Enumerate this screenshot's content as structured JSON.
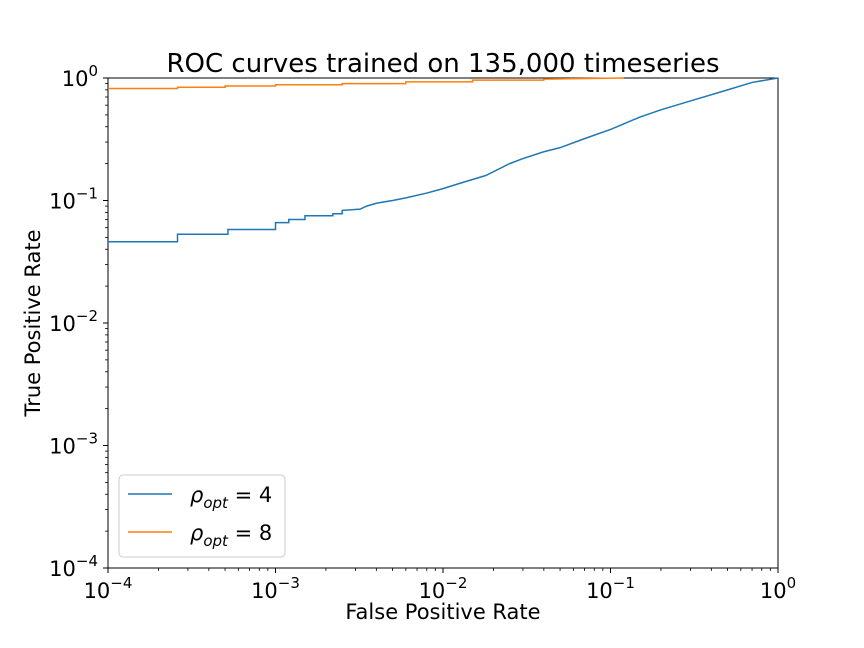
{
  "chart_data": {
    "type": "line",
    "title": "ROC curves trained on 135,000 timeseries",
    "xlabel": "False Positive Rate",
    "ylabel": "True Positive Rate",
    "xscale": "log",
    "yscale": "log",
    "xlim": [
      0.0001,
      1
    ],
    "ylim": [
      0.0001,
      1
    ],
    "x_ticks": [
      {
        "value": 0.0001,
        "base": "10",
        "exp": "−4"
      },
      {
        "value": 0.001,
        "base": "10",
        "exp": "−3"
      },
      {
        "value": 0.01,
        "base": "10",
        "exp": "−2"
      },
      {
        "value": 0.1,
        "base": "10",
        "exp": "−1"
      },
      {
        "value": 1,
        "base": "10",
        "exp": "0"
      }
    ],
    "y_ticks": [
      {
        "value": 0.0001,
        "base": "10",
        "exp": "−4"
      },
      {
        "value": 0.001,
        "base": "10",
        "exp": "−3"
      },
      {
        "value": 0.01,
        "base": "10",
        "exp": "−2"
      },
      {
        "value": 0.1,
        "base": "10",
        "exp": "−1"
      },
      {
        "value": 1,
        "base": "10",
        "exp": "0"
      }
    ],
    "grid": false,
    "legend_position": "lower-left",
    "series": [
      {
        "name": "ρ_opt = 4",
        "legend": {
          "symbol": "ρ",
          "sub": "opt",
          "suffix": " = 4"
        },
        "color": "#1f77b4",
        "points": [
          [
            0.0001,
            0.046
          ],
          [
            0.00026,
            0.046
          ],
          [
            0.00026,
            0.053
          ],
          [
            0.00052,
            0.053
          ],
          [
            0.00052,
            0.058
          ],
          [
            0.001,
            0.058
          ],
          [
            0.001,
            0.066
          ],
          [
            0.0012,
            0.066
          ],
          [
            0.0012,
            0.07
          ],
          [
            0.0015,
            0.07
          ],
          [
            0.0015,
            0.075
          ],
          [
            0.0022,
            0.075
          ],
          [
            0.0022,
            0.078
          ],
          [
            0.0025,
            0.078
          ],
          [
            0.0025,
            0.083
          ],
          [
            0.0032,
            0.085
          ],
          [
            0.0035,
            0.09
          ],
          [
            0.004,
            0.095
          ],
          [
            0.005,
            0.1
          ],
          [
            0.006,
            0.105
          ],
          [
            0.008,
            0.115
          ],
          [
            0.01,
            0.125
          ],
          [
            0.013,
            0.14
          ],
          [
            0.018,
            0.16
          ],
          [
            0.025,
            0.2
          ],
          [
            0.03,
            0.22
          ],
          [
            0.04,
            0.25
          ],
          [
            0.05,
            0.27
          ],
          [
            0.07,
            0.32
          ],
          [
            0.1,
            0.38
          ],
          [
            0.15,
            0.48
          ],
          [
            0.2,
            0.55
          ],
          [
            0.3,
            0.65
          ],
          [
            0.5,
            0.8
          ],
          [
            0.7,
            0.92
          ],
          [
            1,
            1
          ]
        ]
      },
      {
        "name": "ρ_opt = 8",
        "legend": {
          "symbol": "ρ",
          "sub": "opt",
          "suffix": " = 8"
        },
        "color": "#ff7f0e",
        "points": [
          [
            0.0001,
            0.82
          ],
          [
            0.00026,
            0.82
          ],
          [
            0.00026,
            0.84
          ],
          [
            0.0005,
            0.84
          ],
          [
            0.0005,
            0.86
          ],
          [
            0.001,
            0.86
          ],
          [
            0.001,
            0.88
          ],
          [
            0.0025,
            0.88
          ],
          [
            0.0025,
            0.9
          ],
          [
            0.006,
            0.9
          ],
          [
            0.006,
            0.93
          ],
          [
            0.015,
            0.93
          ],
          [
            0.015,
            0.96
          ],
          [
            0.04,
            0.96
          ],
          [
            0.04,
            0.98
          ],
          [
            0.12,
            1
          ]
        ]
      }
    ]
  }
}
